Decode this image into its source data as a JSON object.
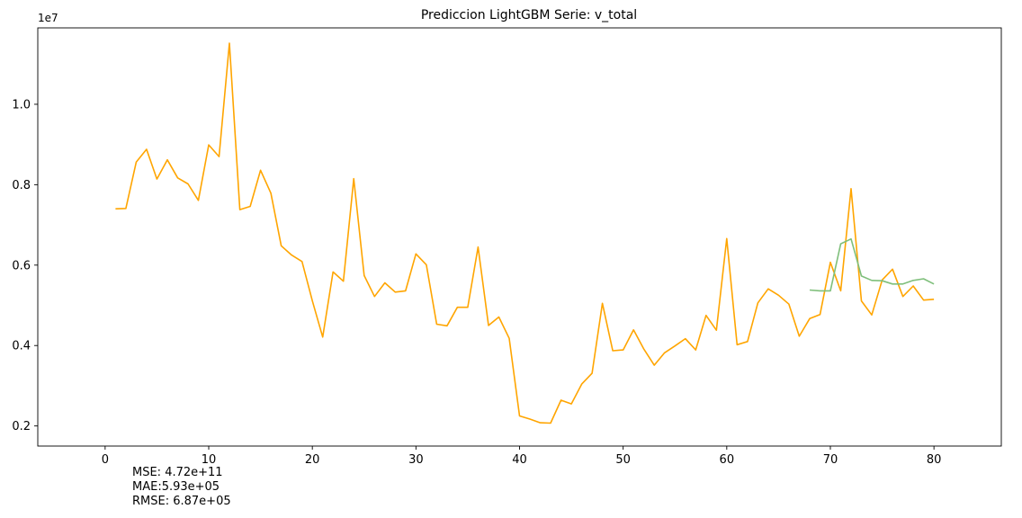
{
  "chart_data": {
    "type": "line",
    "title": "Prediccion LightGBM Serie: v_total",
    "xlabel": "",
    "ylabel": "",
    "y_multiplier_label": "1e7",
    "xlim": [
      -6.5,
      86.5
    ],
    "ylim": [
      1500000,
      11900000
    ],
    "xticks": [
      0,
      10,
      20,
      30,
      40,
      50,
      60,
      70,
      80
    ],
    "yticks": [
      2000000,
      4000000,
      6000000,
      8000000,
      10000000
    ],
    "ytick_labels": [
      "0.2",
      "0.4",
      "0.6",
      "0.8",
      "1.0"
    ],
    "grid": false,
    "series": [
      {
        "color": "#ffa500",
        "x": [
          1,
          2,
          3,
          4,
          5,
          6,
          7,
          8,
          9,
          10,
          11,
          12,
          13,
          14,
          15,
          16,
          17,
          18,
          19,
          20,
          21,
          22,
          23,
          24,
          25,
          26,
          27,
          28,
          29,
          30,
          31,
          32,
          33,
          34,
          35,
          36,
          37,
          38,
          39,
          40,
          41,
          42,
          43,
          44,
          45,
          46,
          47,
          48,
          49,
          50,
          51,
          52,
          53,
          54,
          55,
          56,
          57,
          58,
          59,
          60,
          61,
          62,
          63,
          64,
          65,
          66,
          67,
          68,
          69,
          70,
          71,
          72,
          73,
          74,
          75,
          76,
          77,
          78,
          79,
          80
        ],
        "y": [
          7400000,
          7410000,
          8560000,
          8880000,
          8140000,
          8620000,
          8170000,
          8020000,
          7610000,
          8990000,
          8700000,
          11520000,
          7380000,
          7460000,
          8360000,
          7790000,
          6480000,
          6250000,
          6090000,
          5110000,
          4210000,
          5830000,
          5600000,
          8150000,
          5740000,
          5220000,
          5560000,
          5330000,
          5360000,
          6280000,
          6010000,
          4530000,
          4490000,
          4950000,
          4950000,
          6450000,
          4500000,
          4710000,
          4180000,
          2250000,
          2170000,
          2080000,
          2070000,
          2640000,
          2550000,
          3040000,
          3310000,
          5050000,
          3870000,
          3890000,
          4390000,
          3910000,
          3510000,
          3820000,
          3990000,
          4170000,
          3890000,
          4750000,
          4380000,
          6660000,
          4020000,
          4100000,
          5060000,
          5410000,
          5250000,
          5030000,
          4230000,
          4670000,
          4770000,
          6070000,
          5360000,
          7900000,
          5110000,
          4760000,
          5630000,
          5900000,
          5220000,
          5480000,
          5130000,
          5150000
        ]
      },
      {
        "color": "#7fbf7b",
        "x": [
          68,
          69,
          70,
          71,
          72,
          73,
          74,
          75,
          76,
          77,
          78,
          79,
          80
        ],
        "y": [
          5380000,
          5360000,
          5360000,
          6530000,
          6650000,
          5730000,
          5620000,
          5610000,
          5530000,
          5530000,
          5620000,
          5660000,
          5530000
        ]
      }
    ]
  },
  "metrics": {
    "mse": "MSE: 4.72e+11",
    "mae": "MAE:5.93e+05",
    "rmse": "RMSE: 6.87e+05"
  }
}
